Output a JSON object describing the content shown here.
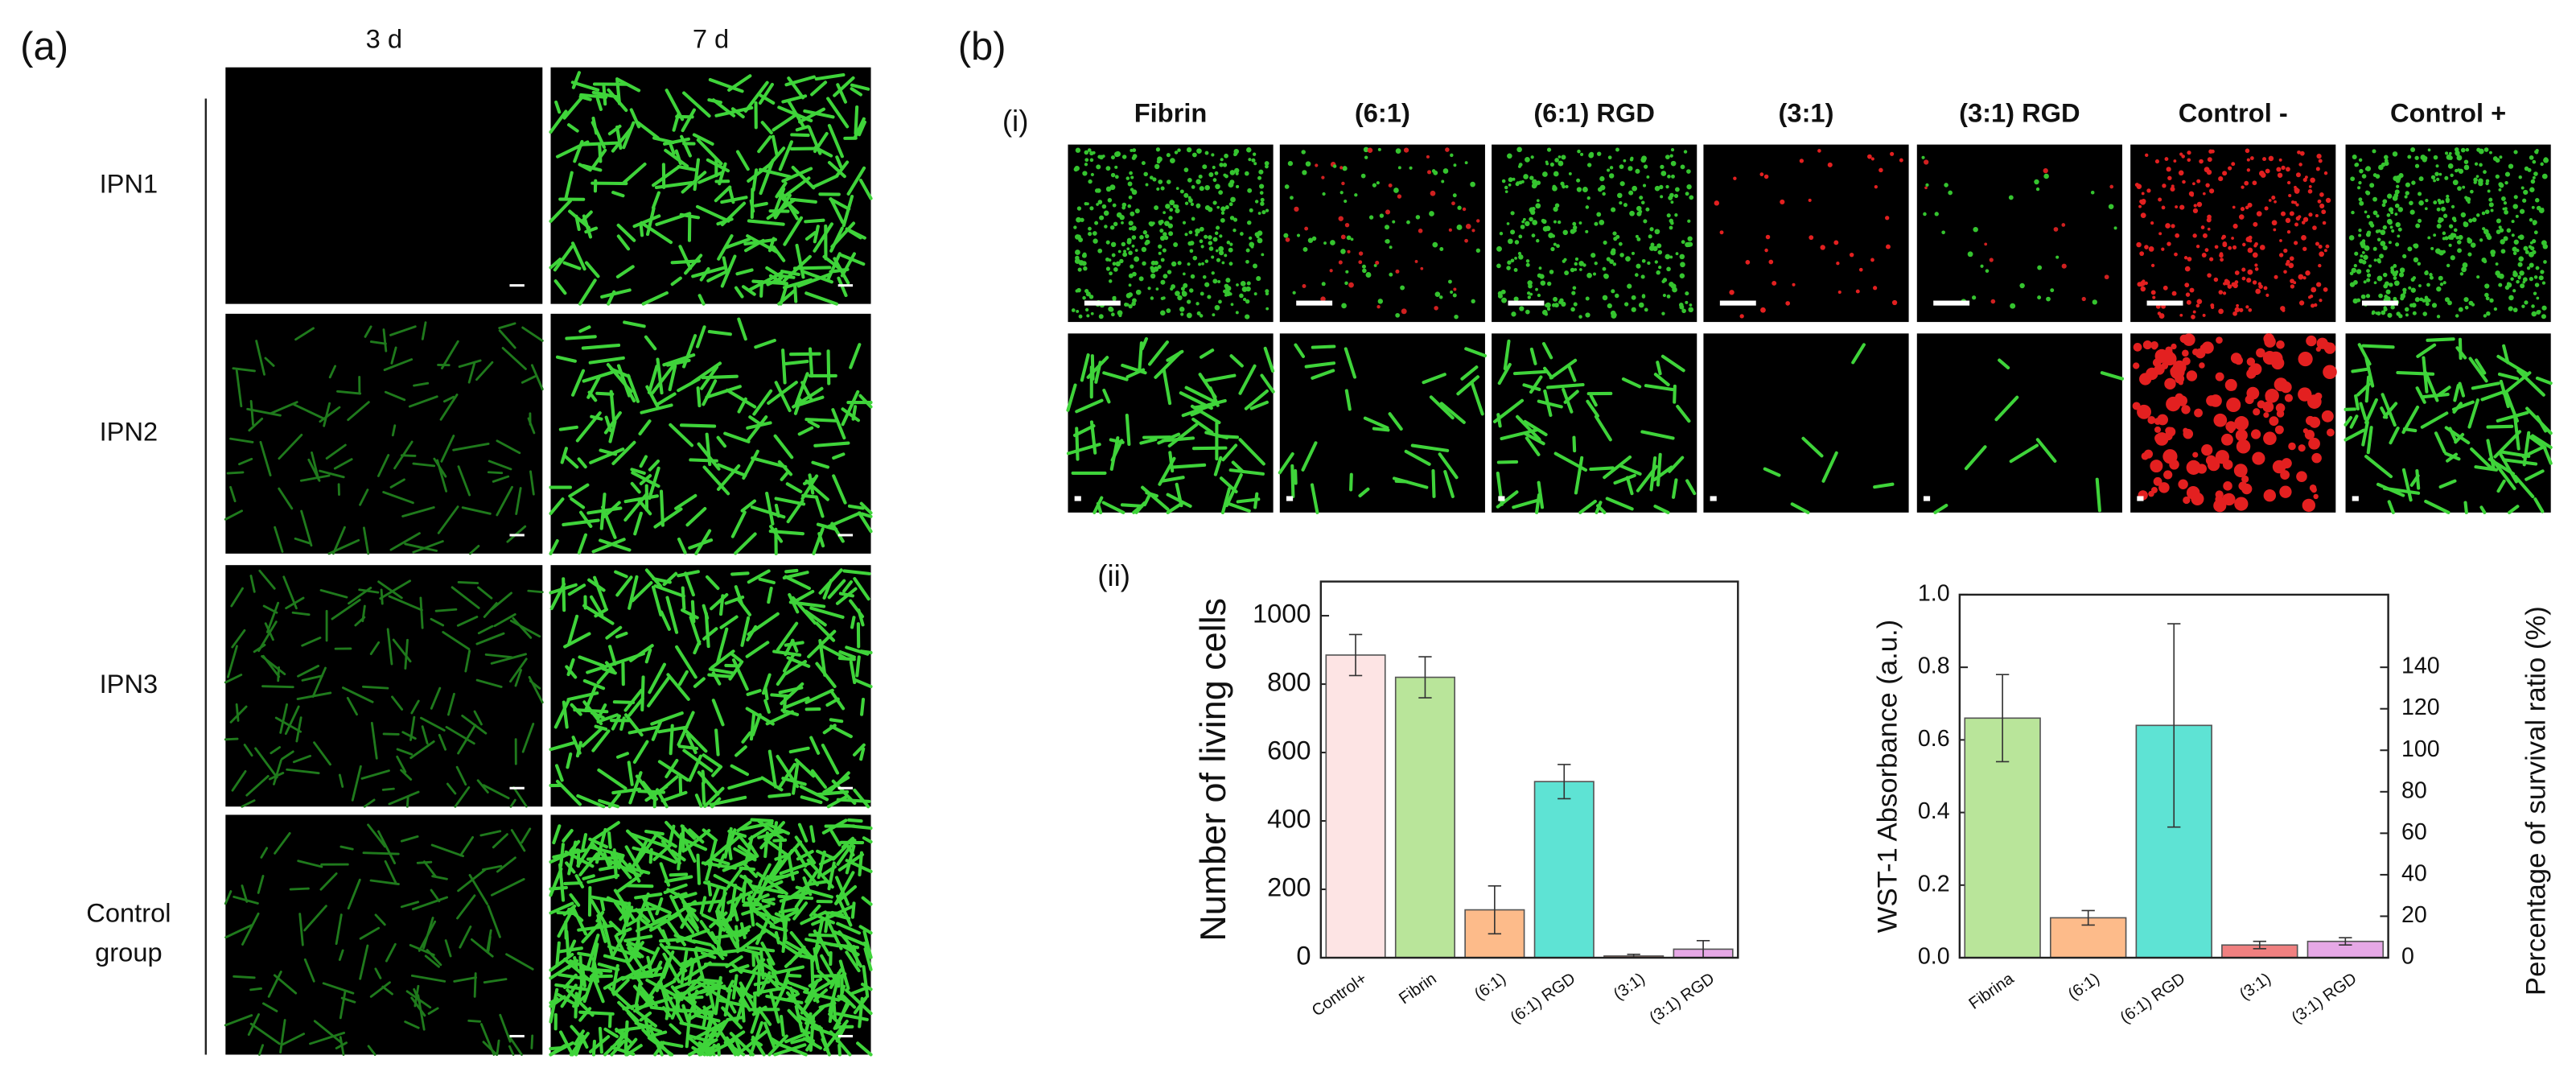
{
  "panel_a": {
    "label": "(a)",
    "columns": [
      "3 d",
      "7 d"
    ],
    "row_labels": [
      [
        "IPN1"
      ],
      [
        "IPN2"
      ],
      [
        "IPN3"
      ],
      [
        "Control",
        "group"
      ]
    ]
  },
  "panel_b": {
    "label": "(b)",
    "sub_i": "(i)",
    "sub_ii": "(ii)",
    "columns": [
      "Fibrin",
      "(6:1)",
      "(6:1) RGD",
      "(3:1)",
      "(3:1) RGD",
      "Control -",
      "Control +"
    ]
  },
  "chart_data": [
    {
      "type": "bar",
      "y_label": "Number of living cells",
      "categories": [
        "Control+",
        "Fibrin",
        "(6:1)",
        "(6:1) RGD",
        "(3:1)",
        "(3:1) RGD"
      ],
      "values": [
        885,
        820,
        140,
        515,
        5,
        25
      ],
      "errors": [
        60,
        60,
        70,
        50,
        5,
        25
      ],
      "colors": [
        "#fde4e4",
        "#b9e59a",
        "#fdbb8a",
        "#5ee3d4",
        "#e07a5f",
        "#e6a8e6"
      ],
      "ylim": [
        0,
        1100
      ],
      "yticks": [
        0,
        200,
        400,
        600,
        800,
        1000
      ]
    },
    {
      "type": "bar",
      "y_label": "WST-1 Absorbance (a.u.)",
      "y2_label": "Percentage of survival ratio (%)",
      "categories": [
        "Fibrina",
        "(6:1)",
        "(6:1) RGD",
        "(3:1)",
        "(3:1) RGD"
      ],
      "values": [
        0.66,
        0.11,
        0.64,
        0.035,
        0.045
      ],
      "errors": [
        0.12,
        0.02,
        0.28,
        0.01,
        0.01
      ],
      "colors": [
        "#b9e59a",
        "#fdbb8a",
        "#5ee3d4",
        "#f08080",
        "#e6a8e6"
      ],
      "ylim": [
        0,
        1.0
      ],
      "yticks": [
        0.0,
        0.2,
        0.4,
        0.6,
        0.8,
        1.0
      ],
      "y2lim": [
        0,
        175
      ],
      "y2ticks": [
        0,
        20,
        40,
        60,
        80,
        100,
        120,
        140
      ]
    }
  ]
}
